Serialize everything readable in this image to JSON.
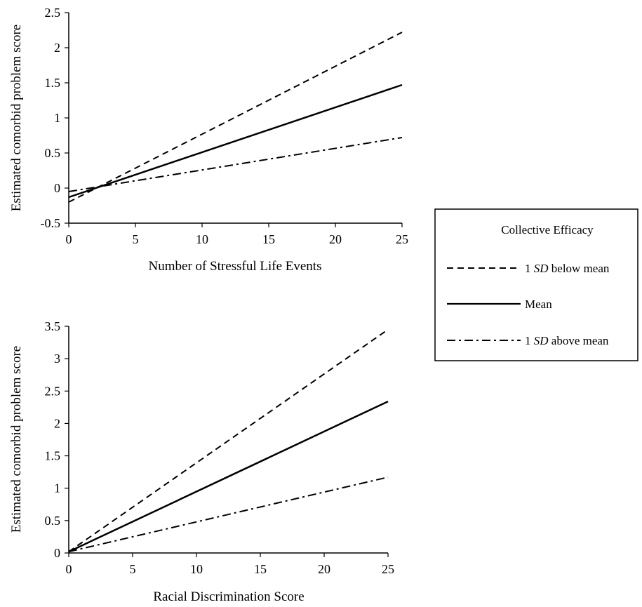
{
  "chart_data": [
    {
      "type": "line",
      "title": "",
      "xlabel": "Number of Stressful Life Events",
      "ylabel": "Estimated comorbid problem score",
      "xlim": [
        0,
        25
      ],
      "ylim": [
        -0.5,
        2.5
      ],
      "x_ticks": [
        "0",
        "5",
        "10",
        "15",
        "20",
        "25"
      ],
      "y_ticks": [
        "-0.5",
        "0",
        "0.5",
        "1",
        "1.5",
        "2",
        "2.5"
      ],
      "grid": false,
      "series": [
        {
          "key": "below",
          "x": [
            0,
            25
          ],
          "y": [
            -0.2,
            2.22
          ]
        },
        {
          "key": "mean",
          "x": [
            0,
            25
          ],
          "y": [
            -0.13,
            1.47
          ]
        },
        {
          "key": "above",
          "x": [
            0,
            25
          ],
          "y": [
            -0.05,
            0.72
          ]
        }
      ]
    },
    {
      "type": "line",
      "title": "",
      "xlabel": "Racial Discrimination Score",
      "ylabel": "Estimated comorbid problem score",
      "xlim": [
        0,
        25
      ],
      "ylim": [
        0,
        3.5
      ],
      "x_ticks": [
        "0",
        "5",
        "10",
        "15",
        "20",
        "25"
      ],
      "y_ticks": [
        "0",
        "0.5",
        "1",
        "1.5",
        "2",
        "2.5",
        "3",
        "3.5"
      ],
      "grid": false,
      "series": [
        {
          "key": "below",
          "x": [
            0,
            25
          ],
          "y": [
            0.02,
            3.45
          ]
        },
        {
          "key": "mean",
          "x": [
            0,
            25
          ],
          "y": [
            0.02,
            2.34
          ]
        },
        {
          "key": "above",
          "x": [
            0,
            25
          ],
          "y": [
            0.02,
            1.17
          ]
        }
      ]
    }
  ],
  "legend": {
    "title": "Collective Efficacy",
    "position": "right",
    "entries": [
      {
        "key": "below",
        "prefix": "1 ",
        "italic": "SD",
        "suffix": " below mean",
        "dash": "dashed"
      },
      {
        "key": "mean",
        "prefix": "Mean",
        "italic": "",
        "suffix": "",
        "dash": "solid"
      },
      {
        "key": "above",
        "prefix": "1 ",
        "italic": "SD",
        "suffix": " above mean",
        "dash": "dash-dot"
      }
    ]
  }
}
